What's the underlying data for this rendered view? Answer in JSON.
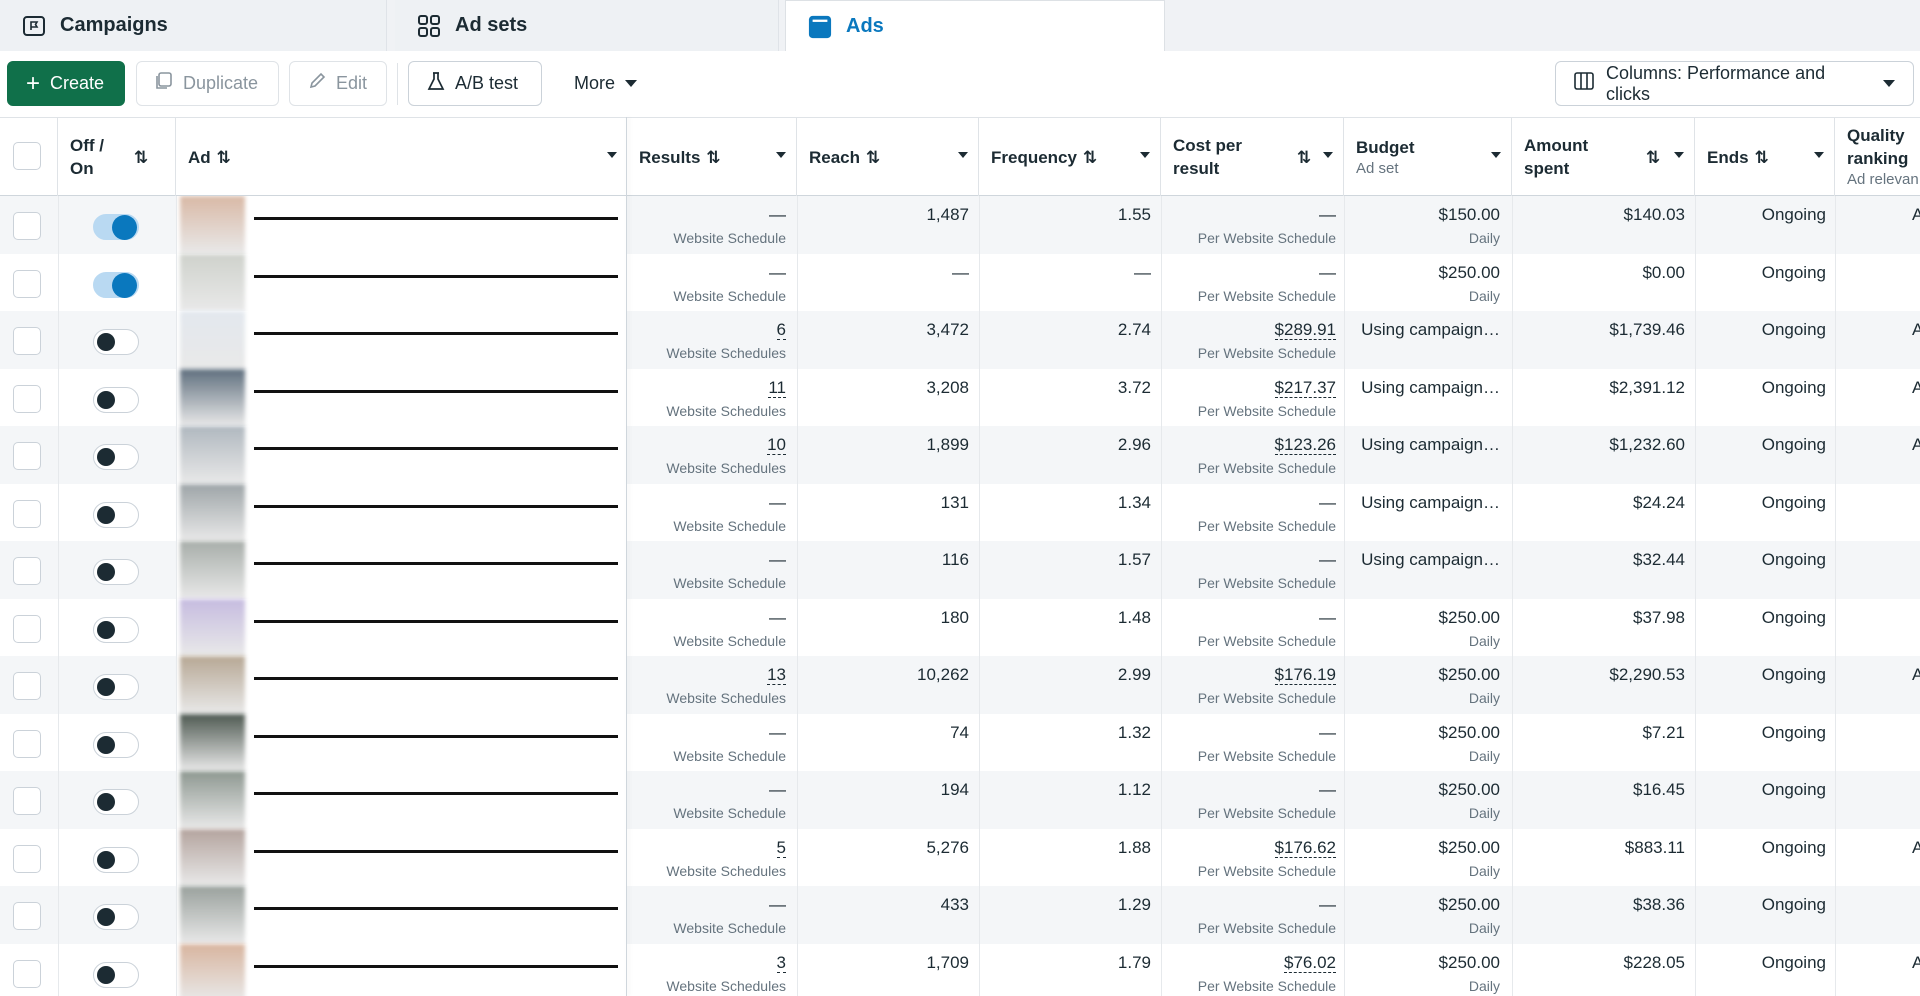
{
  "tabs": [
    {
      "label": "Campaigns",
      "icon": "campaign-flag-icon",
      "active": false
    },
    {
      "label": "Ad sets",
      "icon": "grid-icon",
      "active": false
    },
    {
      "label": "Ads",
      "icon": "ad-window-icon",
      "active": true
    }
  ],
  "toolbar": {
    "create_label": "Create",
    "duplicate_label": "Duplicate",
    "edit_label": "Edit",
    "abtest_label": "A/B test",
    "more_label": "More",
    "columns_label": "Columns: Performance and clicks"
  },
  "columns": {
    "offon": "Off / On",
    "ad": "Ad",
    "results": "Results",
    "reach": "Reach",
    "frequency": "Frequency",
    "cost": "Cost per result",
    "budget": "Budget",
    "budget_sub": "Ad set",
    "amount": "Amount spent",
    "ends": "Ends",
    "quality": "Quality ranking",
    "quality_sub": "Ad relevan"
  },
  "accent": "#0a78be",
  "primary_color": "#10704a",
  "rows": [
    {
      "on": true,
      "results": "—",
      "results_sub": "Website Schedule",
      "reach": "1,487",
      "freq": "1.55",
      "cost": "—",
      "cost_sub": "Per Website Schedule",
      "budget": "$150.00",
      "budget_sub": "Daily",
      "amount": "$140.03",
      "ends": "Ongoing",
      "quality": "A"
    },
    {
      "on": true,
      "results": "—",
      "results_sub": "Website Schedule",
      "reach": "—",
      "freq": "—",
      "cost": "—",
      "cost_sub": "Per Website Schedule",
      "budget": "$250.00",
      "budget_sub": "Daily",
      "amount": "$0.00",
      "ends": "Ongoing",
      "quality": ""
    },
    {
      "on": false,
      "results": "6",
      "results_sub": "Website Schedules",
      "reach": "3,472",
      "freq": "2.74",
      "cost": "$289.91",
      "cost_sub": "Per Website Schedule",
      "budget": "Using campaign…",
      "budget_sub": "",
      "amount": "$1,739.46",
      "ends": "Ongoing",
      "quality": "A"
    },
    {
      "on": false,
      "results": "11",
      "results_sub": "Website Schedules",
      "reach": "3,208",
      "freq": "3.72",
      "cost": "$217.37",
      "cost_sub": "Per Website Schedule",
      "budget": "Using campaign…",
      "budget_sub": "",
      "amount": "$2,391.12",
      "ends": "Ongoing",
      "quality": "A"
    },
    {
      "on": false,
      "results": "10",
      "results_sub": "Website Schedules",
      "reach": "1,899",
      "freq": "2.96",
      "cost": "$123.26",
      "cost_sub": "Per Website Schedule",
      "budget": "Using campaign…",
      "budget_sub": "",
      "amount": "$1,232.60",
      "ends": "Ongoing",
      "quality": "A"
    },
    {
      "on": false,
      "results": "—",
      "results_sub": "Website Schedule",
      "reach": "131",
      "freq": "1.34",
      "cost": "—",
      "cost_sub": "Per Website Schedule",
      "budget": "Using campaign…",
      "budget_sub": "",
      "amount": "$24.24",
      "ends": "Ongoing",
      "quality": ""
    },
    {
      "on": false,
      "results": "—",
      "results_sub": "Website Schedule",
      "reach": "116",
      "freq": "1.57",
      "cost": "—",
      "cost_sub": "Per Website Schedule",
      "budget": "Using campaign…",
      "budget_sub": "",
      "amount": "$32.44",
      "ends": "Ongoing",
      "quality": ""
    },
    {
      "on": false,
      "results": "—",
      "results_sub": "Website Schedule",
      "reach": "180",
      "freq": "1.48",
      "cost": "—",
      "cost_sub": "Per Website Schedule",
      "budget": "$250.00",
      "budget_sub": "Daily",
      "amount": "$37.98",
      "ends": "Ongoing",
      "quality": ""
    },
    {
      "on": false,
      "results": "13",
      "results_sub": "Website Schedules",
      "reach": "10,262",
      "freq": "2.99",
      "cost": "$176.19",
      "cost_sub": "Per Website Schedule",
      "budget": "$250.00",
      "budget_sub": "Daily",
      "amount": "$2,290.53",
      "ends": "Ongoing",
      "quality": "A"
    },
    {
      "on": false,
      "results": "—",
      "results_sub": "Website Schedule",
      "reach": "74",
      "freq": "1.32",
      "cost": "—",
      "cost_sub": "Per Website Schedule",
      "budget": "$250.00",
      "budget_sub": "Daily",
      "amount": "$7.21",
      "ends": "Ongoing",
      "quality": ""
    },
    {
      "on": false,
      "results": "—",
      "results_sub": "Website Schedule",
      "reach": "194",
      "freq": "1.12",
      "cost": "—",
      "cost_sub": "Per Website Schedule",
      "budget": "$250.00",
      "budget_sub": "Daily",
      "amount": "$16.45",
      "ends": "Ongoing",
      "quality": ""
    },
    {
      "on": false,
      "results": "5",
      "results_sub": "Website Schedules",
      "reach": "5,276",
      "freq": "1.88",
      "cost": "$176.62",
      "cost_sub": "Per Website Schedule",
      "budget": "$250.00",
      "budget_sub": "Daily",
      "amount": "$883.11",
      "ends": "Ongoing",
      "quality": "A"
    },
    {
      "on": false,
      "results": "—",
      "results_sub": "Website Schedule",
      "reach": "433",
      "freq": "1.29",
      "cost": "—",
      "cost_sub": "Per Website Schedule",
      "budget": "$250.00",
      "budget_sub": "Daily",
      "amount": "$38.36",
      "ends": "Ongoing",
      "quality": ""
    },
    {
      "on": false,
      "results": "3",
      "results_sub": "Website Schedules",
      "reach": "1,709",
      "freq": "1.79",
      "cost": "$76.02",
      "cost_sub": "Per Website Schedule",
      "budget": "$250.00",
      "budget_sub": "Daily",
      "amount": "$228.05",
      "ends": "Ongoing",
      "quality": "A"
    }
  ]
}
